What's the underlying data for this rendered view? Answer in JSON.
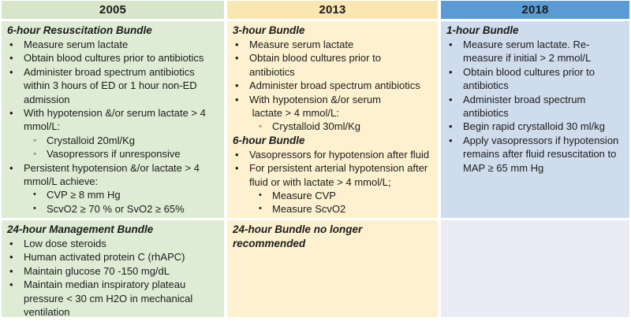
{
  "markers": {
    "disc": "•",
    "circle": "◦"
  },
  "columns": [
    {
      "year": "2005",
      "colors": {
        "header": "#d7e6ca",
        "row1": "#dfecd5",
        "row2": "#dfecd5"
      },
      "rows": [
        {
          "sections": [
            {
              "title": "6-hour Resuscitation Bundle",
              "items": [
                {
                  "indent": 0,
                  "marker": "disc",
                  "text": "Measure serum lactate"
                },
                {
                  "indent": 0,
                  "marker": "disc",
                  "text": "Obtain blood cultures prior to antibiotics"
                },
                {
                  "indent": 0,
                  "marker": "disc",
                  "text": "Administer broad spectrum antibiotics\nwithin 3 hours of ED or 1 hour non-ED\nadmission"
                },
                {
                  "indent": 0,
                  "marker": "disc",
                  "text": "With hypotension &/or serum lactate > 4\nmmol/L:"
                },
                {
                  "indent": 1,
                  "marker": "circle",
                  "text": "Crystalloid 20ml/Kg"
                },
                {
                  "indent": 1,
                  "marker": "circle",
                  "text": "Vasopressors if unresponsive"
                },
                {
                  "indent": 0,
                  "marker": "disc",
                  "text": "Persistent hypotension &/or lactate > 4\nmmol/L achieve:"
                },
                {
                  "indent": 1,
                  "marker": "disc",
                  "text": "CVP ≥ 8 mm Hg"
                },
                {
                  "indent": 1,
                  "marker": "disc",
                  "text": "ScvO2 ≥ 70 % or SvO2 ≥ 65%"
                }
              ]
            }
          ]
        },
        {
          "sections": [
            {
              "title": "24-hour Management Bundle",
              "items": [
                {
                  "indent": 0,
                  "marker": "disc",
                  "text": "Low dose steroids"
                },
                {
                  "indent": 0,
                  "marker": "disc",
                  "text": "Human activated protein C (rhAPC)"
                },
                {
                  "indent": 0,
                  "marker": "disc",
                  "text": "Maintain glucose 70 -150 mg/dL"
                },
                {
                  "indent": 0,
                  "marker": "disc",
                  "text": "Maintain median inspiratory plateau\npressure < 30 cm H2O in mechanical\nventilation"
                }
              ]
            }
          ]
        }
      ]
    },
    {
      "year": "2013",
      "colors": {
        "header": "#f9e6b1",
        "row1": "#fdf1cf",
        "row2": "#fdf1cf"
      },
      "rows": [
        {
          "sections": [
            {
              "title": "3-hour Bundle",
              "items": [
                {
                  "indent": 0,
                  "marker": "disc",
                  "text": "Measure serum lactate"
                },
                {
                  "indent": 0,
                  "marker": "disc",
                  "text": "Obtain blood cultures prior to\nantibiotics"
                },
                {
                  "indent": 0,
                  "marker": "disc",
                  "text": "Administer broad spectrum antibiotics"
                },
                {
                  "indent": 0,
                  "marker": "disc",
                  "text": "With hypotension &/or serum\n lactate > 4 mmol/L:"
                },
                {
                  "indent": 1,
                  "marker": "circle",
                  "text": "Crystalloid 30ml/Kg"
                }
              ]
            },
            {
              "title": "6-hour Bundle",
              "items": [
                {
                  "indent": 0,
                  "marker": "disc",
                  "text": "Vasopressors for hypotension after fluid"
                },
                {
                  "indent": 0,
                  "marker": "disc",
                  "text": "For persistent arterial hypotension after\nfluid or with lactate > 4 mmol/L;"
                },
                {
                  "indent": 1,
                  "marker": "disc",
                  "text": "Measure CVP"
                },
                {
                  "indent": 1,
                  "marker": "disc",
                  "text": "Measure ScvO2"
                }
              ]
            }
          ]
        },
        {
          "sections": [
            {
              "title": "24-hour Bundle no longer\nrecommended",
              "items": []
            }
          ]
        }
      ]
    },
    {
      "year": "2018",
      "colors": {
        "header": "#5b9bd5",
        "row1": "#cfdcec",
        "row2": "#e9ecf4"
      },
      "rows": [
        {
          "sections": [
            {
              "title": "1-hour Bundle",
              "items": [
                {
                  "indent": 0,
                  "marker": "disc",
                  "text": "Measure serum lactate. Re-\nmeasure if initial > 2 mmol/L"
                },
                {
                  "indent": 0,
                  "marker": "disc",
                  "text": "Obtain blood cultures prior to\nantibiotics"
                },
                {
                  "indent": 0,
                  "marker": "disc",
                  "text": "Administer broad spectrum\nantibiotics"
                },
                {
                  "indent": 0,
                  "marker": "disc",
                  "text": "Begin rapid crystalloid 30 ml/kg"
                },
                {
                  "indent": 0,
                  "marker": "disc",
                  "text": "Apply vasopressors if hypotension\nremains after fluid resuscitation to\nMAP ≥ 65 mm Hg"
                }
              ]
            }
          ]
        },
        {
          "sections": []
        }
      ]
    }
  ]
}
